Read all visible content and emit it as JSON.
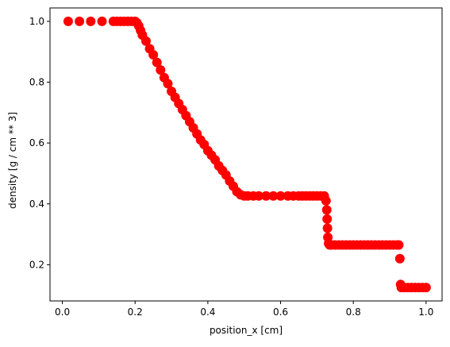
{
  "chart_data": {
    "type": "scatter",
    "xlabel": "position_x [cm]",
    "ylabel": "density [g / cm ** 3]",
    "color": "#ff0000",
    "x": [
      0.016,
      0.047,
      0.078,
      0.109,
      0.14,
      0.15,
      0.16,
      0.17,
      0.18,
      0.19,
      0.2,
      0.205,
      0.21,
      0.215,
      0.22,
      0.23,
      0.24,
      0.25,
      0.26,
      0.27,
      0.28,
      0.29,
      0.3,
      0.31,
      0.32,
      0.33,
      0.34,
      0.35,
      0.36,
      0.37,
      0.38,
      0.39,
      0.4,
      0.41,
      0.42,
      0.43,
      0.44,
      0.45,
      0.46,
      0.47,
      0.48,
      0.49,
      0.5,
      0.51,
      0.525,
      0.54,
      0.56,
      0.58,
      0.6,
      0.62,
      0.635,
      0.65,
      0.66,
      0.67,
      0.68,
      0.69,
      0.7,
      0.71,
      0.72,
      0.725,
      0.727,
      0.728,
      0.729,
      0.73,
      0.732,
      0.735,
      0.74,
      0.75,
      0.76,
      0.77,
      0.78,
      0.79,
      0.8,
      0.81,
      0.82,
      0.83,
      0.84,
      0.85,
      0.86,
      0.87,
      0.88,
      0.89,
      0.9,
      0.91,
      0.92,
      0.925,
      0.928,
      0.93,
      0.932,
      0.94,
      0.95,
      0.96,
      0.97,
      0.98,
      0.99,
      1.0
    ],
    "y": [
      1.0,
      1.0,
      1.0,
      1.0,
      1.0,
      1.0,
      1.0,
      1.0,
      1.0,
      1.0,
      1.0,
      0.995,
      0.985,
      0.97,
      0.955,
      0.935,
      0.91,
      0.89,
      0.865,
      0.84,
      0.815,
      0.795,
      0.77,
      0.75,
      0.73,
      0.71,
      0.69,
      0.67,
      0.65,
      0.63,
      0.61,
      0.595,
      0.575,
      0.56,
      0.545,
      0.525,
      0.51,
      0.495,
      0.475,
      0.458,
      0.44,
      0.43,
      0.426,
      0.426,
      0.426,
      0.426,
      0.426,
      0.426,
      0.426,
      0.426,
      0.426,
      0.426,
      0.426,
      0.426,
      0.426,
      0.426,
      0.426,
      0.426,
      0.426,
      0.41,
      0.38,
      0.35,
      0.32,
      0.29,
      0.27,
      0.265,
      0.265,
      0.265,
      0.265,
      0.265,
      0.265,
      0.265,
      0.265,
      0.265,
      0.265,
      0.265,
      0.265,
      0.265,
      0.265,
      0.265,
      0.265,
      0.265,
      0.265,
      0.265,
      0.265,
      0.265,
      0.22,
      0.135,
      0.125,
      0.125,
      0.125,
      0.125,
      0.125,
      0.125,
      0.125,
      0.125
    ],
    "xlim": [
      -0.034,
      1.044
    ],
    "ylim": [
      0.081,
      1.044
    ],
    "xticks": [
      {
        "value": 0,
        "label": "0.0"
      },
      0.2,
      0.4,
      0.6,
      0.8,
      {
        "value": 1,
        "label": "1.0"
      }
    ],
    "yticks": [
      0.2,
      0.4,
      0.6,
      0.8,
      {
        "value": 1,
        "label": "1.0"
      }
    ]
  }
}
